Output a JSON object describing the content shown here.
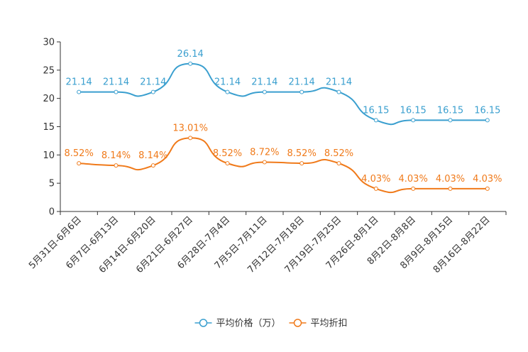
{
  "chart_data": {
    "type": "line",
    "title": "",
    "xlabel": "",
    "ylabel": "",
    "ylim": [
      0,
      30
    ],
    "yticks": [
      0,
      5,
      10,
      15,
      20,
      25,
      30
    ],
    "categories": [
      "5月31日-6月6日",
      "6月7日-6月13日",
      "6月14日-6月20日",
      "6月21日-6月27日",
      "6月28日-7月4日",
      "7月5日-7月11日",
      "7月12日-7月18日",
      "7月19日-7月25日",
      "7月26日-8月1日",
      "8月2日-8月8日",
      "8月9日-8月15日",
      "8月16日-8月22日"
    ],
    "series": [
      {
        "name": "平均价格（万）",
        "color": "#3a9fcf",
        "values": [
          21.14,
          21.14,
          21.14,
          26.14,
          21.14,
          21.14,
          21.14,
          21.14,
          16.15,
          16.15,
          16.15,
          16.15
        ],
        "labels": [
          "21.14",
          "21.14",
          "21.14",
          "26.14",
          "21.14",
          "21.14",
          "21.14",
          "21.14",
          "16.15",
          "16.15",
          "16.15",
          "16.15"
        ]
      },
      {
        "name": "平均折扣",
        "color": "#f07a1a",
        "values": [
          8.52,
          8.14,
          8.14,
          13.01,
          8.52,
          8.72,
          8.52,
          8.52,
          4.03,
          4.03,
          4.03,
          4.03
        ],
        "labels": [
          "8.52%",
          "8.14%",
          "8.14%",
          "13.01%",
          "8.52%",
          "8.72%",
          "8.52%",
          "8.52%",
          "4.03%",
          "4.03%",
          "4.03%",
          "4.03%"
        ]
      }
    ],
    "legend_position": "bottom-center",
    "grid": false
  }
}
